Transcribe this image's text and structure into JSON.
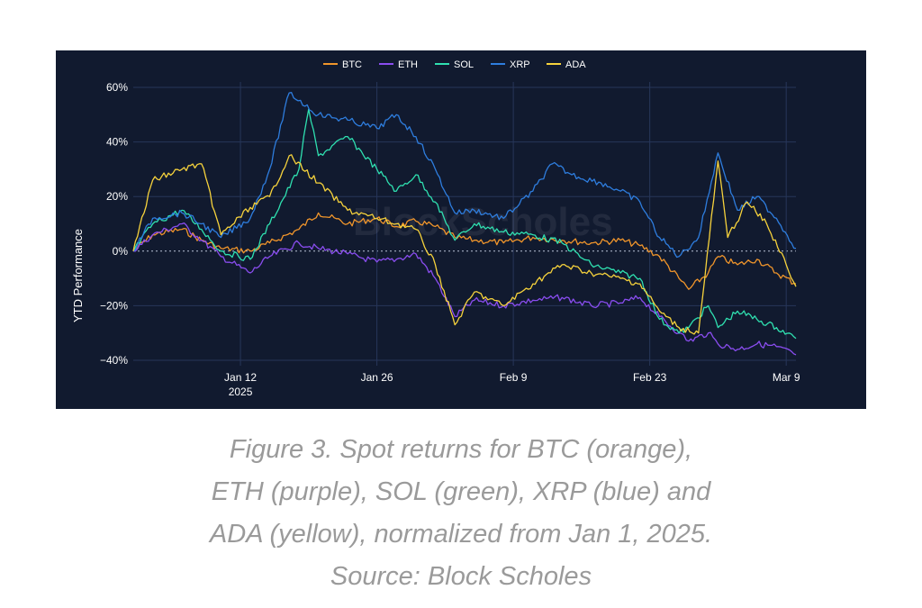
{
  "chart_data": {
    "type": "line",
    "ylabel": "YTD Performance",
    "watermark": "BlockScholes",
    "x_range": [
      "2025-01-01",
      "2025-03-10"
    ],
    "ylim": [
      -42,
      62
    ],
    "y_ticks": [
      {
        "value": 60,
        "label": "60%"
      },
      {
        "value": 40,
        "label": "40%"
      },
      {
        "value": 20,
        "label": "20%"
      },
      {
        "value": 0,
        "label": "0%"
      },
      {
        "value": -20,
        "label": "−20%"
      },
      {
        "value": -40,
        "label": "−40%"
      }
    ],
    "x_ticks": [
      {
        "date": "2025-01-12",
        "label": "Jan 12",
        "sublabel": "2025"
      },
      {
        "date": "2025-01-26",
        "label": "Jan 26"
      },
      {
        "date": "2025-02-09",
        "label": "Feb 9"
      },
      {
        "date": "2025-02-23",
        "label": "Feb 23"
      },
      {
        "date": "2025-03-09",
        "label": "Mar 9"
      }
    ],
    "grid": true,
    "legend_position": "top-center",
    "series": [
      {
        "name": "BTC",
        "color": "#f0952b",
        "points": [
          [
            "2025-01-01",
            0
          ],
          [
            "2025-01-03",
            6
          ],
          [
            "2025-01-06",
            8
          ],
          [
            "2025-01-08",
            4
          ],
          [
            "2025-01-10",
            1
          ],
          [
            "2025-01-13",
            0
          ],
          [
            "2025-01-15",
            3
          ],
          [
            "2025-01-18",
            8
          ],
          [
            "2025-01-20",
            14
          ],
          [
            "2025-01-23",
            10
          ],
          [
            "2025-01-26",
            12
          ],
          [
            "2025-01-28",
            9
          ],
          [
            "2025-01-30",
            11
          ],
          [
            "2025-02-01",
            9
          ],
          [
            "2025-02-03",
            5
          ],
          [
            "2025-02-05",
            4
          ],
          [
            "2025-02-08",
            3
          ],
          [
            "2025-02-11",
            5
          ],
          [
            "2025-02-14",
            4
          ],
          [
            "2025-02-17",
            3
          ],
          [
            "2025-02-20",
            4
          ],
          [
            "2025-02-22",
            2
          ],
          [
            "2025-02-24",
            -2
          ],
          [
            "2025-02-26",
            -10
          ],
          [
            "2025-02-27",
            -14
          ],
          [
            "2025-03-01",
            -8
          ],
          [
            "2025-03-02",
            -2
          ],
          [
            "2025-03-04",
            -5
          ],
          [
            "2025-03-06",
            -3
          ],
          [
            "2025-03-08",
            -8
          ],
          [
            "2025-03-10",
            -12
          ]
        ]
      },
      {
        "name": "ETH",
        "color": "#8a4df0",
        "points": [
          [
            "2025-01-01",
            0
          ],
          [
            "2025-01-03",
            6
          ],
          [
            "2025-01-06",
            10
          ],
          [
            "2025-01-08",
            4
          ],
          [
            "2025-01-10",
            -2
          ],
          [
            "2025-01-13",
            -8
          ],
          [
            "2025-01-15",
            -2
          ],
          [
            "2025-01-18",
            3
          ],
          [
            "2025-01-20",
            1
          ],
          [
            "2025-01-23",
            -1
          ],
          [
            "2025-01-26",
            -4
          ],
          [
            "2025-01-28",
            -3
          ],
          [
            "2025-01-30",
            -1
          ],
          [
            "2025-02-01",
            -10
          ],
          [
            "2025-02-03",
            -24
          ],
          [
            "2025-02-05",
            -18
          ],
          [
            "2025-02-08",
            -20
          ],
          [
            "2025-02-11",
            -18
          ],
          [
            "2025-02-14",
            -17
          ],
          [
            "2025-02-17",
            -20
          ],
          [
            "2025-02-20",
            -19
          ],
          [
            "2025-02-22",
            -17
          ],
          [
            "2025-02-24",
            -24
          ],
          [
            "2025-02-26",
            -30
          ],
          [
            "2025-02-27",
            -33
          ],
          [
            "2025-03-01",
            -30
          ],
          [
            "2025-03-02",
            -34
          ],
          [
            "2025-03-04",
            -36
          ],
          [
            "2025-03-06",
            -34
          ],
          [
            "2025-03-08",
            -35
          ],
          [
            "2025-03-10",
            -38
          ]
        ]
      },
      {
        "name": "SOL",
        "color": "#2fe0b0",
        "points": [
          [
            "2025-01-01",
            0
          ],
          [
            "2025-01-03",
            10
          ],
          [
            "2025-01-06",
            15
          ],
          [
            "2025-01-08",
            8
          ],
          [
            "2025-01-10",
            0
          ],
          [
            "2025-01-13",
            -3
          ],
          [
            "2025-01-15",
            10
          ],
          [
            "2025-01-18",
            30
          ],
          [
            "2025-01-19",
            52
          ],
          [
            "2025-01-20",
            35
          ],
          [
            "2025-01-23",
            42
          ],
          [
            "2025-01-26",
            30
          ],
          [
            "2025-01-28",
            22
          ],
          [
            "2025-01-30",
            28
          ],
          [
            "2025-02-01",
            18
          ],
          [
            "2025-02-03",
            4
          ],
          [
            "2025-02-05",
            10
          ],
          [
            "2025-02-08",
            7
          ],
          [
            "2025-02-11",
            6
          ],
          [
            "2025-02-14",
            3
          ],
          [
            "2025-02-17",
            -5
          ],
          [
            "2025-02-20",
            -8
          ],
          [
            "2025-02-22",
            -10
          ],
          [
            "2025-02-24",
            -25
          ],
          [
            "2025-02-26",
            -30
          ],
          [
            "2025-02-27",
            -28
          ],
          [
            "2025-03-01",
            -20
          ],
          [
            "2025-03-02",
            -28
          ],
          [
            "2025-03-04",
            -22
          ],
          [
            "2025-03-06",
            -25
          ],
          [
            "2025-03-08",
            -28
          ],
          [
            "2025-03-10",
            -32
          ]
        ]
      },
      {
        "name": "XRP",
        "color": "#2e7dde",
        "points": [
          [
            "2025-01-01",
            0
          ],
          [
            "2025-01-03",
            12
          ],
          [
            "2025-01-06",
            14
          ],
          [
            "2025-01-08",
            10
          ],
          [
            "2025-01-10",
            5
          ],
          [
            "2025-01-13",
            12
          ],
          [
            "2025-01-15",
            30
          ],
          [
            "2025-01-17",
            58
          ],
          [
            "2025-01-20",
            50
          ],
          [
            "2025-01-23",
            48
          ],
          [
            "2025-01-26",
            45
          ],
          [
            "2025-01-28",
            50
          ],
          [
            "2025-01-30",
            42
          ],
          [
            "2025-02-01",
            30
          ],
          [
            "2025-02-03",
            14
          ],
          [
            "2025-02-05",
            15
          ],
          [
            "2025-02-08",
            12
          ],
          [
            "2025-02-11",
            22
          ],
          [
            "2025-02-13",
            32
          ],
          [
            "2025-02-15",
            28
          ],
          [
            "2025-02-18",
            25
          ],
          [
            "2025-02-20",
            22
          ],
          [
            "2025-02-22",
            18
          ],
          [
            "2025-02-24",
            5
          ],
          [
            "2025-02-26",
            -2
          ],
          [
            "2025-02-28",
            5
          ],
          [
            "2025-03-02",
            36
          ],
          [
            "2025-03-04",
            15
          ],
          [
            "2025-03-06",
            20
          ],
          [
            "2025-03-08",
            12
          ],
          [
            "2025-03-10",
            1
          ]
        ]
      },
      {
        "name": "ADA",
        "color": "#f6d23c",
        "points": [
          [
            "2025-01-01",
            0
          ],
          [
            "2025-01-03",
            26
          ],
          [
            "2025-01-06",
            30
          ],
          [
            "2025-01-08",
            32
          ],
          [
            "2025-01-10",
            6
          ],
          [
            "2025-01-13",
            16
          ],
          [
            "2025-01-15",
            20
          ],
          [
            "2025-01-17",
            35
          ],
          [
            "2025-01-20",
            25
          ],
          [
            "2025-01-23",
            15
          ],
          [
            "2025-01-26",
            12
          ],
          [
            "2025-01-28",
            10
          ],
          [
            "2025-01-30",
            8
          ],
          [
            "2025-02-01",
            -5
          ],
          [
            "2025-02-03",
            -27
          ],
          [
            "2025-02-05",
            -15
          ],
          [
            "2025-02-08",
            -20
          ],
          [
            "2025-02-11",
            -12
          ],
          [
            "2025-02-14",
            -5
          ],
          [
            "2025-02-17",
            -8
          ],
          [
            "2025-02-20",
            -10
          ],
          [
            "2025-02-22",
            -12
          ],
          [
            "2025-02-24",
            -22
          ],
          [
            "2025-02-26",
            -28
          ],
          [
            "2025-02-28",
            -30
          ],
          [
            "2025-03-02",
            33
          ],
          [
            "2025-03-03",
            5
          ],
          [
            "2025-03-05",
            18
          ],
          [
            "2025-03-07",
            10
          ],
          [
            "2025-03-09",
            -5
          ],
          [
            "2025-03-10",
            -13
          ]
        ]
      }
    ]
  },
  "caption": {
    "line1": "Figure 3. Spot returns for BTC (orange),",
    "line2": "ETH (purple), SOL (green), XRP (blue) and",
    "line3": "ADA (yellow), normalized from Jan 1, 2025.",
    "line4": "Source: Block Scholes"
  }
}
